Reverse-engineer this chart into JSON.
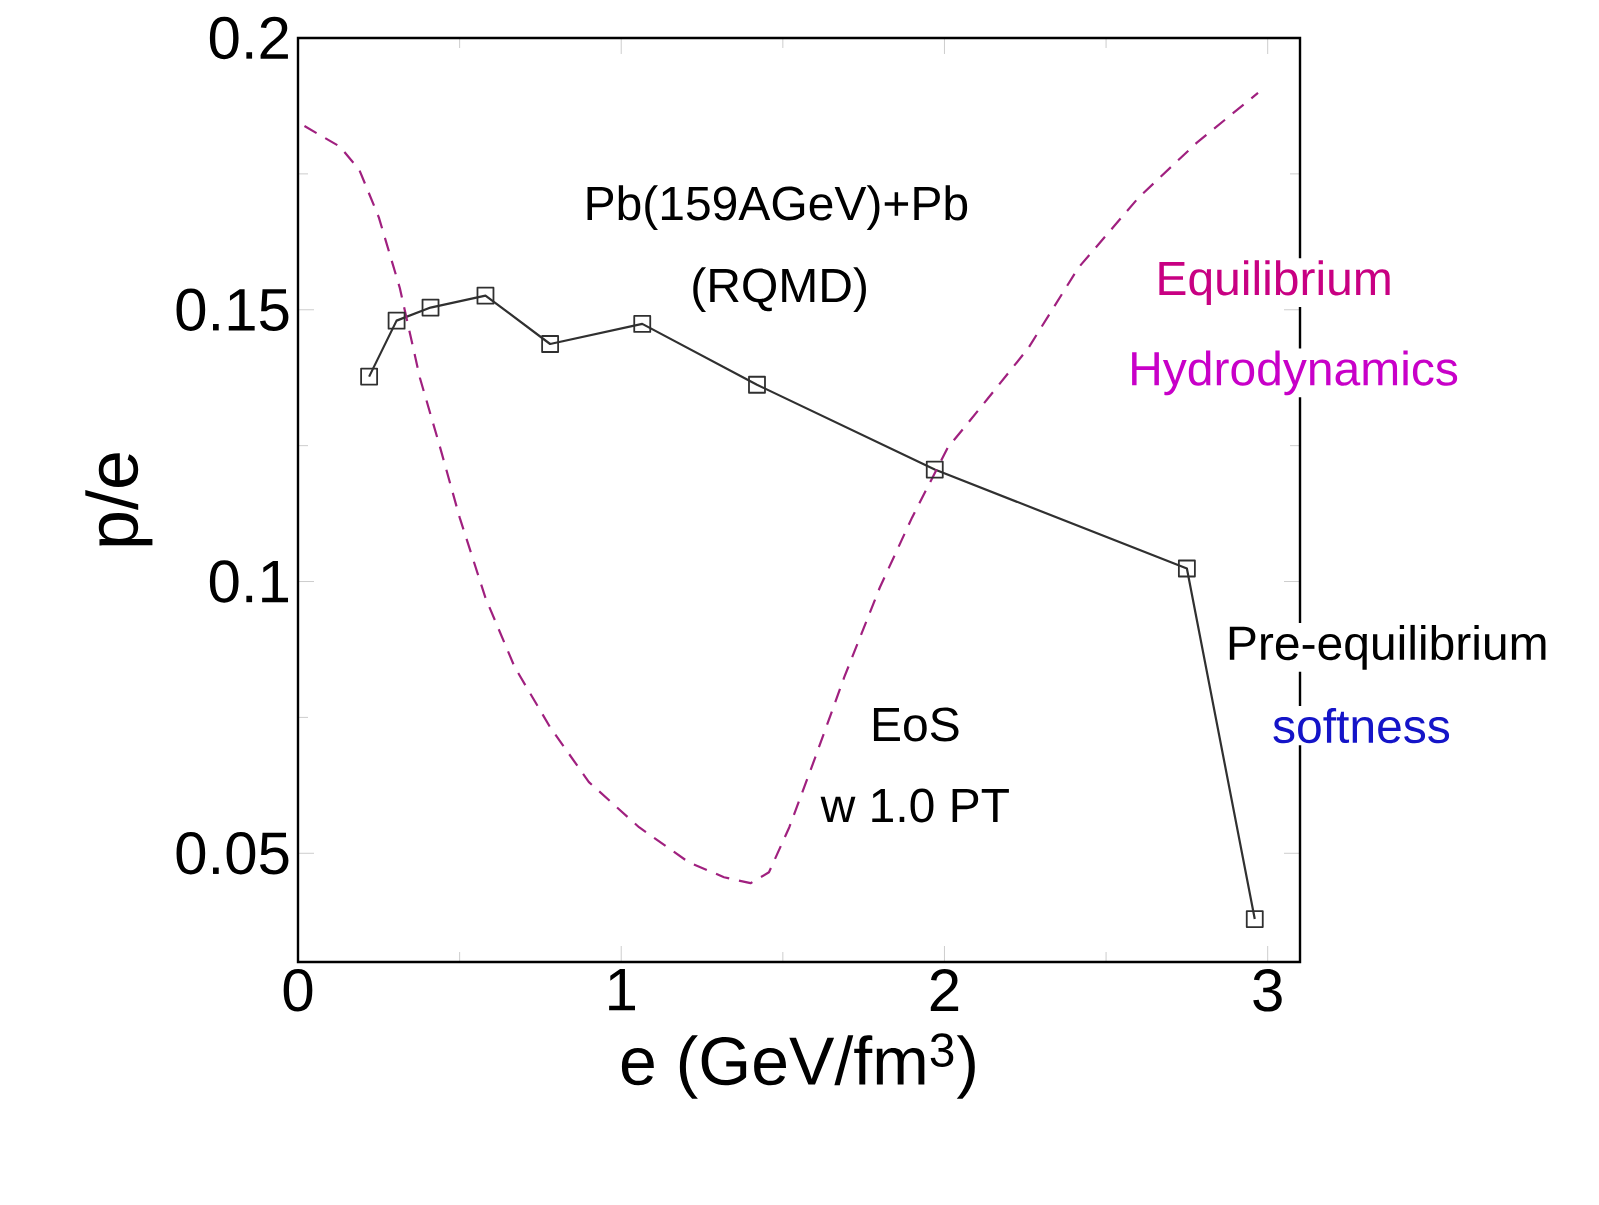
{
  "chart_data": {
    "type": "line",
    "xlabel": "e (GeV/fm$^{3}$)",
    "ylabel": "p/e",
    "xlim": [
      0,
      3.1
    ],
    "ylim": [
      0.03,
      0.2
    ],
    "xticks": [
      0,
      1,
      2,
      3
    ],
    "yticks": [
      0.05,
      0.1,
      0.15,
      0.2
    ],
    "series": [
      {
        "color": "#303030",
        "marker": "square",
        "line_style": "solid",
        "x": [
          0.22,
          0.305,
          0.41,
          0.58,
          0.78,
          1.065,
          1.42,
          1.97,
          2.75,
          2.96
        ],
        "values": [
          0.1377,
          0.148,
          0.1504,
          0.1526,
          0.1437,
          0.1474,
          0.1362,
          0.1206,
          0.1024,
          0.0379
        ]
      },
      {
        "color": "#a0207f",
        "marker": "none",
        "line_style": "dashed",
        "x": [
          0.02,
          0.13,
          0.19,
          0.25,
          0.315,
          0.377,
          0.44,
          0.5,
          0.58,
          0.67,
          0.78,
          0.9,
          1.055,
          1.21,
          1.318,
          1.4,
          1.457,
          1.52,
          1.6,
          1.69,
          1.8,
          1.9,
          2.01,
          2.136,
          2.26,
          2.414,
          2.6,
          2.78,
          2.97
        ],
        "values": [
          0.1838,
          0.18,
          0.1757,
          0.167,
          0.154,
          0.1375,
          0.1246,
          0.1118,
          0.097,
          0.0843,
          0.0732,
          0.0631,
          0.0548,
          0.0483,
          0.0456,
          0.0445,
          0.0465,
          0.0548,
          0.0676,
          0.0824,
          0.0989,
          0.1118,
          0.1246,
          0.1338,
          0.143,
          0.1577,
          0.1706,
          0.1807,
          0.1899
        ]
      }
    ],
    "annotations": [
      "Pb(159AGeV)+Pb",
      "(RQMD)",
      "Equilibrium",
      "Hydrodynamics",
      "Pre-equilibrium",
      "softness",
      "EoS",
      "w 1.0 PT"
    ]
  }
}
